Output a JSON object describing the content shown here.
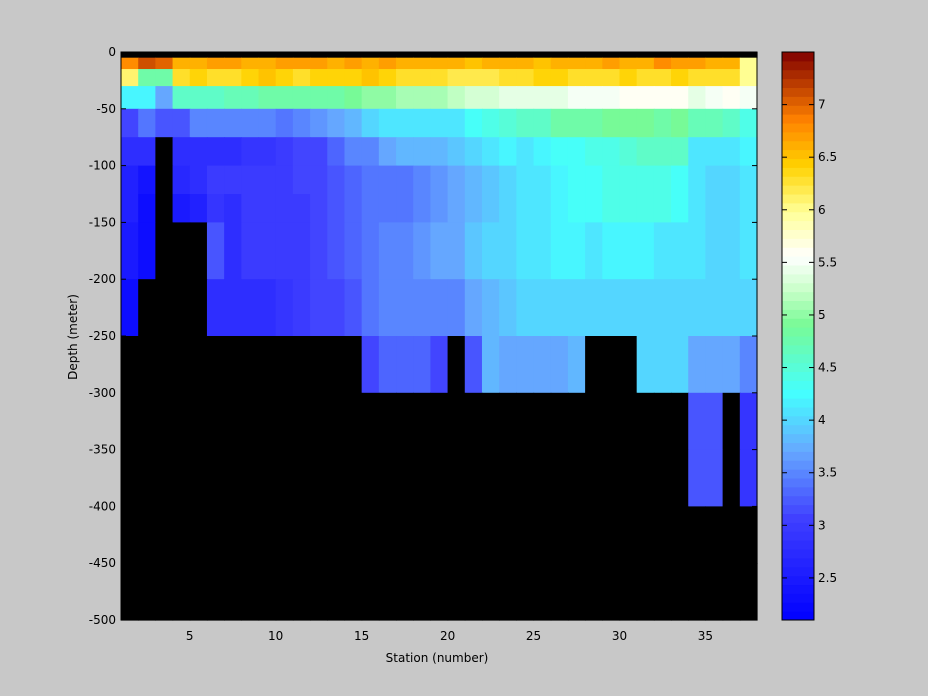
{
  "chart_data": {
    "type": "heatmap",
    "title": "",
    "xlabel": "Station (number)",
    "ylabel": "Depth (meter)",
    "xlim": [
      1,
      38
    ],
    "ylim": [
      -500,
      0
    ],
    "xticks": [
      5,
      10,
      15,
      20,
      25,
      30,
      35
    ],
    "yticks": [
      0,
      -50,
      -100,
      -150,
      -200,
      -250,
      -300,
      -350,
      -400,
      -450,
      -500
    ],
    "clim": [
      2.1,
      7.5
    ],
    "colorbar_ticks": [
      2.5,
      3,
      3.5,
      4,
      4.5,
      5,
      5.5,
      6,
      6.5,
      7
    ],
    "colormap": "jet-white",
    "background_color": "#c8c8c8",
    "missing_color": "#000000",
    "stations": [
      1,
      2,
      3,
      4,
      5,
      6,
      7,
      8,
      9,
      10,
      11,
      12,
      13,
      14,
      15,
      16,
      17,
      18,
      19,
      20,
      21,
      22,
      23,
      24,
      25,
      26,
      27,
      28,
      29,
      30,
      31,
      32,
      33,
      34,
      35,
      36,
      37
    ],
    "depth_bins": [
      0,
      -5,
      -15,
      -30,
      -50,
      -75,
      -100,
      -125,
      -150,
      -200,
      -250,
      -300,
      -350,
      -400,
      -450,
      -500
    ],
    "values": [
      [
        null,
        null,
        null,
        null,
        null,
        null,
        null,
        null,
        null,
        null,
        null,
        null,
        null,
        null,
        null,
        null,
        null,
        null,
        null,
        null,
        null,
        null,
        null,
        null,
        null,
        null,
        null,
        null,
        null,
        null,
        null,
        null,
        null,
        null,
        null,
        null,
        null
      ],
      [
        6.8,
        7.1,
        7.0,
        6.6,
        6.6,
        6.7,
        6.7,
        6.6,
        6.6,
        6.7,
        6.7,
        6.7,
        6.6,
        6.7,
        6.6,
        6.7,
        6.6,
        6.6,
        6.6,
        6.6,
        6.5,
        6.6,
        6.6,
        6.6,
        6.5,
        6.6,
        6.6,
        6.6,
        6.7,
        6.6,
        6.6,
        6.8,
        6.7,
        6.7,
        6.6,
        6.6,
        6.0
      ],
      [
        6.1,
        4.8,
        4.8,
        6.3,
        6.4,
        6.3,
        6.3,
        6.4,
        6.5,
        6.4,
        6.3,
        6.4,
        6.4,
        6.4,
        6.5,
        6.4,
        6.3,
        6.3,
        6.3,
        6.2,
        6.2,
        6.2,
        6.3,
        6.3,
        6.4,
        6.4,
        6.3,
        6.3,
        6.3,
        6.4,
        6.3,
        6.3,
        6.4,
        6.3,
        6.3,
        6.3,
        6.0
      ],
      [
        4.2,
        4.2,
        3.7,
        4.6,
        4.6,
        4.6,
        4.7,
        4.7,
        4.8,
        4.8,
        4.8,
        4.8,
        4.8,
        4.9,
        5.0,
        5.0,
        5.1,
        5.1,
        5.1,
        5.2,
        5.3,
        5.3,
        5.4,
        5.4,
        5.4,
        5.4,
        5.5,
        5.5,
        5.5,
        5.6,
        5.6,
        5.6,
        5.6,
        5.4,
        5.5,
        5.6,
        5.5
      ],
      [
        3.1,
        3.4,
        3.2,
        3.2,
        3.5,
        3.5,
        3.5,
        3.5,
        3.5,
        3.4,
        3.5,
        3.6,
        3.7,
        3.8,
        4.0,
        4.1,
        4.1,
        4.1,
        4.1,
        4.1,
        4.3,
        4.4,
        4.5,
        4.6,
        4.6,
        4.8,
        4.8,
        4.8,
        4.9,
        4.9,
        4.9,
        4.8,
        4.9,
        4.7,
        4.7,
        4.6,
        4.4
      ],
      [
        2.8,
        2.8,
        null,
        2.8,
        2.8,
        2.8,
        2.8,
        2.9,
        2.9,
        3.0,
        3.1,
        3.1,
        3.3,
        3.5,
        3.5,
        3.7,
        3.8,
        3.8,
        3.8,
        3.9,
        4.0,
        4.1,
        4.2,
        4.1,
        4.2,
        4.3,
        4.3,
        4.4,
        4.4,
        4.5,
        4.6,
        4.6,
        4.6,
        4.1,
        4.1,
        4.1,
        4.2
      ],
      [
        2.6,
        2.4,
        null,
        2.7,
        2.8,
        3.0,
        3.0,
        3.0,
        3.0,
        3.0,
        3.1,
        3.1,
        3.2,
        3.3,
        3.4,
        3.4,
        3.4,
        3.5,
        3.6,
        3.7,
        3.8,
        3.9,
        4.0,
        4.1,
        4.1,
        4.2,
        4.3,
        4.3,
        4.4,
        4.4,
        4.4,
        4.4,
        4.3,
        4.1,
        4.0,
        4.0,
        4.1
      ],
      [
        2.6,
        2.3,
        null,
        2.5,
        2.6,
        2.9,
        2.8,
        3.0,
        3.0,
        3.0,
        3.0,
        3.1,
        3.2,
        3.3,
        3.4,
        3.4,
        3.4,
        3.5,
        3.6,
        3.7,
        3.8,
        3.9,
        4.0,
        4.1,
        4.1,
        4.2,
        4.3,
        4.3,
        4.4,
        4.4,
        4.4,
        4.4,
        4.3,
        4.1,
        4.0,
        4.0,
        4.1
      ],
      [
        2.5,
        2.3,
        null,
        null,
        null,
        3.2,
        2.8,
        3.0,
        3.0,
        3.0,
        3.0,
        3.1,
        3.2,
        3.3,
        3.4,
        3.5,
        3.5,
        3.6,
        3.7,
        3.7,
        3.9,
        4.0,
        4.0,
        4.1,
        4.1,
        4.2,
        4.2,
        4.1,
        4.2,
        4.2,
        4.2,
        4.1,
        4.1,
        4.1,
        4.0,
        4.0,
        4.1
      ],
      [
        2.3,
        null,
        null,
        null,
        null,
        2.8,
        2.8,
        2.8,
        2.8,
        2.9,
        3.0,
        3.1,
        3.1,
        3.2,
        3.4,
        3.5,
        3.5,
        3.5,
        3.5,
        3.5,
        3.7,
        3.8,
        3.9,
        4.0,
        4.0,
        4.0,
        4.0,
        4.0,
        4.0,
        4.0,
        4.0,
        4.0,
        4.0,
        4.0,
        4.0,
        4.0,
        4.0
      ],
      [
        null,
        null,
        null,
        null,
        null,
        null,
        null,
        null,
        null,
        null,
        null,
        null,
        null,
        null,
        3.1,
        3.3,
        3.3,
        3.3,
        3.1,
        null,
        3.2,
        3.8,
        3.7,
        3.7,
        3.7,
        3.7,
        3.8,
        null,
        null,
        null,
        4.0,
        4.0,
        4.0,
        3.7,
        3.7,
        3.7,
        3.5
      ],
      [
        null,
        null,
        null,
        null,
        null,
        null,
        null,
        null,
        null,
        null,
        null,
        null,
        null,
        null,
        null,
        null,
        null,
        null,
        null,
        null,
        null,
        null,
        null,
        null,
        null,
        null,
        null,
        null,
        null,
        null,
        null,
        null,
        null,
        3.2,
        3.2,
        null,
        2.9
      ],
      [
        null,
        null,
        null,
        null,
        null,
        null,
        null,
        null,
        null,
        null,
        null,
        null,
        null,
        null,
        null,
        null,
        null,
        null,
        null,
        null,
        null,
        null,
        null,
        null,
        null,
        null,
        null,
        null,
        null,
        null,
        null,
        null,
        null,
        3.2,
        3.2,
        null,
        2.9
      ],
      [
        null,
        null,
        null,
        null,
        null,
        null,
        null,
        null,
        null,
        null,
        null,
        null,
        null,
        null,
        null,
        null,
        null,
        null,
        null,
        null,
        null,
        null,
        null,
        null,
        null,
        null,
        null,
        null,
        null,
        null,
        null,
        null,
        null,
        null,
        null,
        null,
        null
      ],
      [
        null,
        null,
        null,
        null,
        null,
        null,
        null,
        null,
        null,
        null,
        null,
        null,
        null,
        null,
        null,
        null,
        null,
        null,
        null,
        null,
        null,
        null,
        null,
        null,
        null,
        null,
        null,
        null,
        null,
        null,
        null,
        null,
        null,
        null,
        null,
        null,
        null
      ]
    ]
  }
}
